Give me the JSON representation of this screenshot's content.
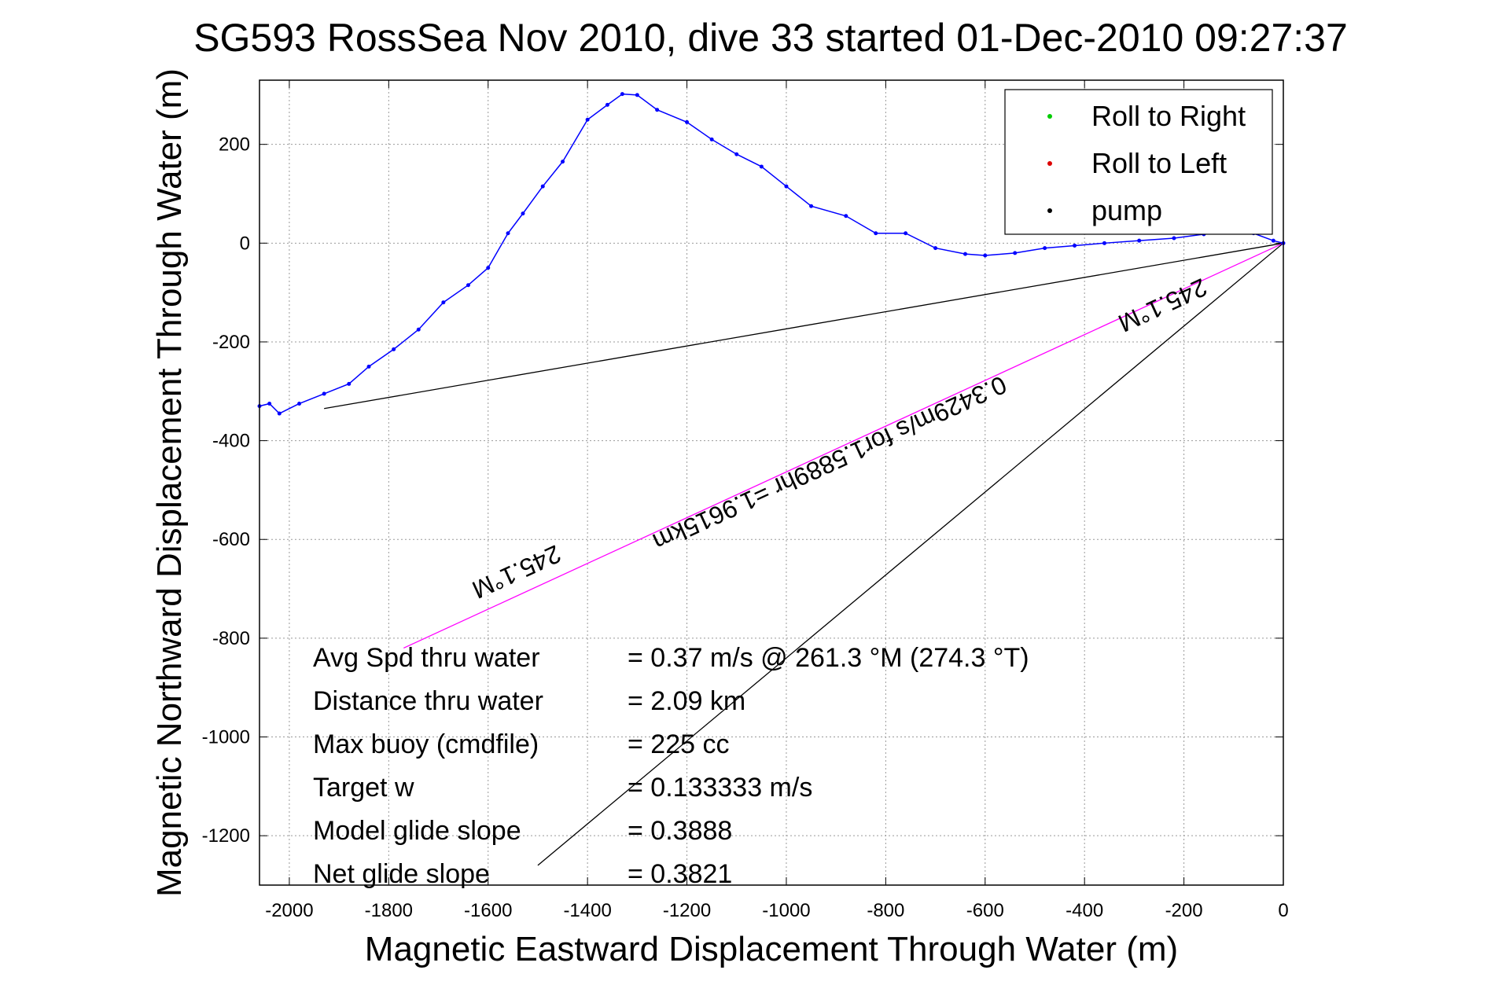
{
  "chart_data": {
    "type": "line",
    "title": "SG593 RossSea Nov 2010, dive 33 started 01-Dec-2010 09:27:37",
    "xlabel": "Magnetic Eastward Displacement Through Water (m)",
    "ylabel": "Magnetic Northward Displacement Through Water (m)",
    "xlim": [
      -2060,
      0
    ],
    "ylim": [
      -1300,
      330
    ],
    "xticks": [
      -2000,
      -1800,
      -1600,
      -1400,
      -1200,
      -1000,
      -800,
      -600,
      -400,
      -200,
      0
    ],
    "yticks": [
      -1200,
      -1000,
      -800,
      -600,
      -400,
      -200,
      0,
      200
    ],
    "grid": true,
    "legend_position": "top-right",
    "legend": [
      {
        "label": "Roll to Right",
        "color": "#00cc00"
      },
      {
        "label": "Roll to Left",
        "color": "#dd0000"
      },
      {
        "label": "pump",
        "color": "#000000"
      }
    ],
    "series": [
      {
        "color": "#0000ff",
        "x": [
          0,
          -20,
          -60,
          -100,
          -160,
          -220,
          -290,
          -360,
          -420,
          -480,
          -540,
          -600,
          -640,
          -700,
          -760,
          -820,
          -880,
          -950,
          -1000,
          -1050,
          -1100,
          -1150,
          -1200,
          -1260,
          -1300,
          -1330,
          -1360,
          -1400,
          -1450,
          -1490,
          -1530,
          -1560,
          -1600,
          -1640,
          -1690,
          -1740,
          -1790,
          -1840,
          -1880,
          -1930,
          -1980,
          -2020,
          -2040,
          -2060
        ],
        "y": [
          0,
          5,
          20,
          22,
          18,
          10,
          5,
          0,
          -5,
          -10,
          -20,
          -25,
          -22,
          -10,
          20,
          20,
          55,
          75,
          115,
          155,
          180,
          210,
          245,
          270,
          300,
          302,
          280,
          250,
          165,
          115,
          60,
          20,
          -50,
          -85,
          -120,
          -175,
          -215,
          -250,
          -285,
          -305,
          -325,
          -345,
          -325,
          -330
        ]
      }
    ],
    "reference_lines": [
      {
        "name": "avg-spd-line",
        "color": "#000000",
        "x": [
          0,
          -1930
        ],
        "y": [
          0,
          -335
        ]
      },
      {
        "name": "heading-line",
        "color": "#ff00ff",
        "x": [
          0,
          -1770
        ],
        "y": [
          0,
          -820
        ]
      },
      {
        "name": "net-glide-line",
        "color": "#000000",
        "x": [
          0,
          -1500
        ],
        "y": [
          0,
          -1260
        ]
      }
    ],
    "annotations": [
      {
        "text": "245.1°M",
        "x": -1550,
        "y": -650,
        "rotate": 155.4
      },
      {
        "text": "0.3429m/s for1.5889hr =1.9615km",
        "x": -920,
        "y": -430,
        "rotate": 155.4
      },
      {
        "text": "245.1°M",
        "x": -250,
        "y": -110,
        "rotate": 155.4
      }
    ],
    "stats": [
      {
        "label": "Avg Spd thru water",
        "value": "=  0.37 m/s @ 261.3 °M (274.3 °T)"
      },
      {
        "label": "Distance thru water",
        "value": "=  2.09 km"
      },
      {
        "label": "Max buoy (cmdfile)",
        "value": "= 225 cc"
      },
      {
        "label": "Target w",
        "value": "= 0.133333 m/s"
      },
      {
        "label": "Model glide slope",
        "value": "= 0.3888"
      },
      {
        "label": "Net glide slope",
        "value": "= 0.3821"
      }
    ]
  }
}
